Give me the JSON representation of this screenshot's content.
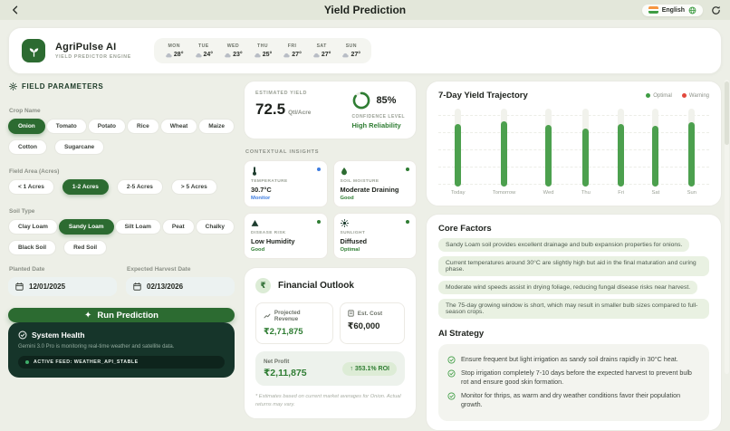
{
  "topbar": {
    "title": "Yield Prediction",
    "language": "English"
  },
  "header": {
    "app_name": "AgriPulse AI",
    "app_subtitle": "YIELD PREDICTOR ENGINE",
    "weather": [
      {
        "day": "MON",
        "temp": "28°"
      },
      {
        "day": "TUE",
        "temp": "24°"
      },
      {
        "day": "WED",
        "temp": "23°"
      },
      {
        "day": "THU",
        "temp": "25°"
      },
      {
        "day": "FRI",
        "temp": "27°"
      },
      {
        "day": "SAT",
        "temp": "27°"
      },
      {
        "day": "SUN",
        "temp": "27°"
      }
    ]
  },
  "field_parameters": {
    "section_title": "FIELD PARAMETERS",
    "crop_label": "Crop Name",
    "crops": [
      {
        "label": "Onion",
        "selected": true
      },
      {
        "label": "Tomato",
        "selected": false
      },
      {
        "label": "Potato",
        "selected": false
      },
      {
        "label": "Rice",
        "selected": false
      },
      {
        "label": "Wheat",
        "selected": false
      },
      {
        "label": "Maize",
        "selected": false
      },
      {
        "label": "Cotton",
        "selected": false
      },
      {
        "label": "Sugarcane",
        "selected": false
      }
    ],
    "area_label": "Field Area (Acres)",
    "areas": [
      {
        "label": "< 1 Acres",
        "selected": false
      },
      {
        "label": "1-2 Acres",
        "selected": true
      },
      {
        "label": "2-5 Acres",
        "selected": false
      },
      {
        "label": "> 5 Acres",
        "selected": false
      }
    ],
    "soil_label": "Soil Type",
    "soils": [
      {
        "label": "Clay Loam",
        "selected": false
      },
      {
        "label": "Sandy Loam",
        "selected": true
      },
      {
        "label": "Silt Loam",
        "selected": false
      },
      {
        "label": "Peat",
        "selected": false
      },
      {
        "label": "Chalky",
        "selected": false
      },
      {
        "label": "Black Soil",
        "selected": false
      },
      {
        "label": "Red Soil",
        "selected": false
      }
    ],
    "planted_date_label": "Planted Date",
    "planted_date": "12/01/2025",
    "harvest_date_label": "Expected Harvest Date",
    "harvest_date": "02/13/2026",
    "run_button_label": "Run Prediction"
  },
  "system_health": {
    "title": "System Health",
    "description": "Gemini 3.0 Pro is monitoring real-time weather and satellite data.",
    "badge": "ACTIVE FEED: WEATHER_API_STABLE"
  },
  "yield_card": {
    "label": "ESTIMATED YIELD",
    "value": "72.5",
    "unit": "Qtl/Acre",
    "confidence_pct": "85%",
    "confidence_pct_num": 85,
    "confidence_label": "CONFIDENCE LEVEL",
    "confidence_value": "High Reliability"
  },
  "insights": {
    "section_title": "CONTEXTUAL INSIGHTS",
    "cards": [
      {
        "icon": "thermometer-icon",
        "label": "TEMPERATURE",
        "value": "30.7°C",
        "status": "Monitor",
        "status_color": "#3e7de0"
      },
      {
        "icon": "droplet-icon",
        "label": "SOIL MOISTURE",
        "value": "Moderate Draining",
        "status": "Good",
        "status_color": "#2f7d33"
      },
      {
        "icon": "alert-triangle-icon",
        "label": "DISEASE RISK",
        "value": "Low Humidity",
        "status": "Good",
        "status_color": "#2f7d33"
      },
      {
        "icon": "sun-icon",
        "label": "SUNLIGHT",
        "value": "Diffused",
        "status": "Optimal",
        "status_color": "#2f7d33"
      }
    ]
  },
  "financial": {
    "title": "Financial Outlook",
    "currency_symbol": "₹",
    "revenue_label": "Projected Revenue",
    "revenue_value": "₹2,71,875",
    "cost_label": "Est. Cost",
    "cost_value": "₹60,000",
    "net_label": "Net Profit",
    "net_value": "₹2,11,875",
    "roi_arrow": "↑",
    "roi_value": "353.1% ROI",
    "footnote": "* Estimates based on current market averages for Onion. Actual returns may vary."
  },
  "chart_data": {
    "type": "bar",
    "title": "7-Day Yield Trajectory",
    "categories": [
      "Today",
      "Tomorrow",
      "Wed",
      "Thu",
      "Fri",
      "Sat",
      "Sun"
    ],
    "values": [
      80,
      84,
      79,
      75,
      80,
      78,
      83
    ],
    "ylim": [
      0,
      100
    ],
    "grid": "dashed-horizontal",
    "legend_position": "top-right",
    "bar_color": "#4ca04e",
    "track_color": "#f1f2ec",
    "legend": [
      {
        "label": "Optimal",
        "color": "#3f9d44"
      },
      {
        "label": "Warning",
        "color": "#e2483d"
      }
    ]
  },
  "core_factors": {
    "title": "Core Factors",
    "items": [
      "Sandy Loam soil provides excellent drainage and bulb expansion properties for onions.",
      "Current temperatures around 30°C are slightly high but aid in the final maturation and curing phase.",
      "Moderate wind speeds assist in drying foliage, reducing fungal disease risks near harvest.",
      "The 75-day growing window is short, which may result in smaller bulb sizes compared to full-season crops."
    ]
  },
  "ai_strategy": {
    "title": "AI Strategy",
    "items": [
      "Ensure frequent but light irrigation as sandy soil drains rapidly in 30°C heat.",
      "Stop irrigation completely 7-10 days before the expected harvest to prevent bulb rot and ensure good skin formation.",
      "Monitor for thrips, as warm and dry weather conditions favor their population growth."
    ]
  }
}
